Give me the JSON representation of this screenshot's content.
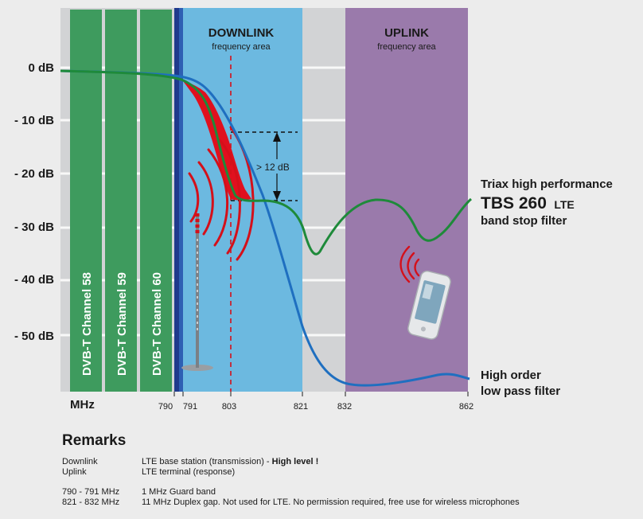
{
  "y_axis": {
    "ticks": [
      "0 dB",
      "- 10 dB",
      "- 20 dB",
      "- 30 dB",
      "- 40 dB",
      "- 50 dB"
    ]
  },
  "x_axis": {
    "unit": "MHz",
    "ticks": [
      "790",
      "791",
      "803",
      "821",
      "832",
      "862"
    ]
  },
  "channels": [
    {
      "label": "DVB-T   Channel 58"
    },
    {
      "label": "DVB-T   Channel 59"
    },
    {
      "label": "DVB-T   Channel 60"
    }
  ],
  "downlink": {
    "title": "DOWNLINK",
    "subtitle": "frequency area"
  },
  "uplink": {
    "title": "UPLINK",
    "subtitle": "frequency area"
  },
  "annotation": "> 12 dB",
  "legend": {
    "tbs": {
      "line1": "Triax high performance",
      "name": "TBS 260",
      "suffix": "LTE",
      "line3": "band stop filter"
    },
    "lowpass": {
      "line1": "High order",
      "line2": "low pass filter"
    }
  },
  "colors": {
    "channel_green": "#3e9b5e",
    "downlink_blue": "#6cb9e0",
    "uplink_purple": "#9a7aab",
    "stop_filter_curve": "#1e8a3a",
    "low_pass_curve": "#1f6fc0",
    "filter_gain_fill": "#e0101e"
  },
  "remarks": {
    "title": "Remarks",
    "rows": [
      {
        "key": "Downlink",
        "value": "LTE base station (transmission) - ",
        "bold": "High level !"
      },
      {
        "key": "Uplink",
        "value": "LTE terminal (response)",
        "bold": ""
      }
    ],
    "rows2": [
      {
        "key": "790 - 791 MHz",
        "value": "1 MHz Guard band"
      },
      {
        "key": "821 - 832 MHz",
        "value": "11 MHz Duplex gap. Not used for LTE. No permission required, free use for wireless microphones"
      }
    ]
  }
}
